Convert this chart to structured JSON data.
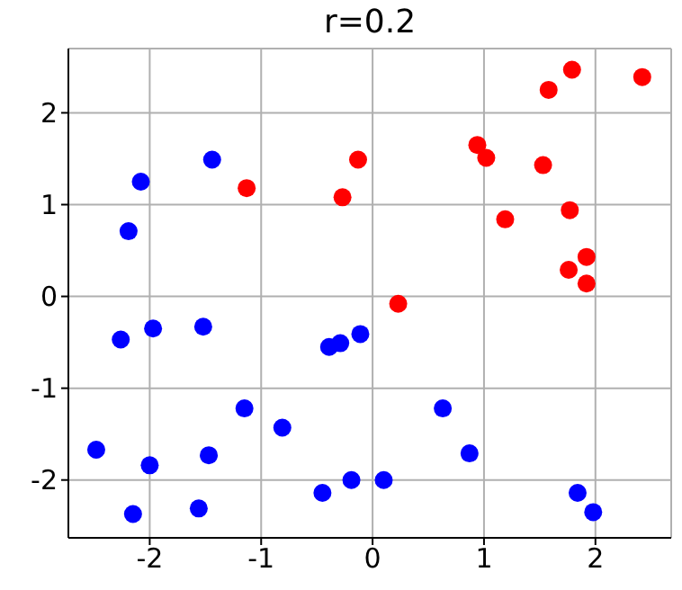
{
  "chart_data": {
    "type": "scatter",
    "title": "r=0.2",
    "grid": true,
    "marker": "circle",
    "xlim": [
      -2.73,
      2.68
    ],
    "ylim": [
      -2.63,
      2.7
    ],
    "xticks": [
      -2,
      -1,
      0,
      1,
      2
    ],
    "yticks": [
      -2,
      -1,
      0,
      1,
      2
    ],
    "series": [
      {
        "color": "#0000ff",
        "x": [
          -2.08,
          -2.19,
          -1.44,
          -2.26,
          -1.97,
          -1.52,
          -0.39,
          -0.29,
          -0.11,
          -2.48,
          -2.0,
          -1.47,
          -1.15,
          -0.81,
          -2.15,
          -1.56,
          -0.45,
          -0.19,
          0.1,
          0.63,
          0.87,
          1.84,
          1.98
        ],
        "values": [
          1.25,
          0.71,
          1.49,
          -0.47,
          -0.35,
          -0.33,
          -0.55,
          -0.51,
          -0.41,
          -1.67,
          -1.84,
          -1.73,
          -1.22,
          -1.43,
          -2.37,
          -2.31,
          -2.14,
          -2.0,
          -2.0,
          -1.22,
          -1.71,
          -2.14,
          -2.35
        ]
      },
      {
        "color": "#ff0000",
        "x": [
          -1.13,
          -0.27,
          -0.13,
          0.23,
          0.94,
          1.02,
          1.53,
          1.19,
          1.58,
          1.79,
          2.42,
          1.77,
          1.76,
          1.92,
          1.92
        ],
        "values": [
          1.18,
          1.08,
          1.49,
          -0.08,
          1.65,
          1.51,
          1.43,
          0.84,
          2.25,
          2.47,
          2.39,
          0.94,
          0.29,
          0.43,
          0.14
        ]
      }
    ]
  }
}
